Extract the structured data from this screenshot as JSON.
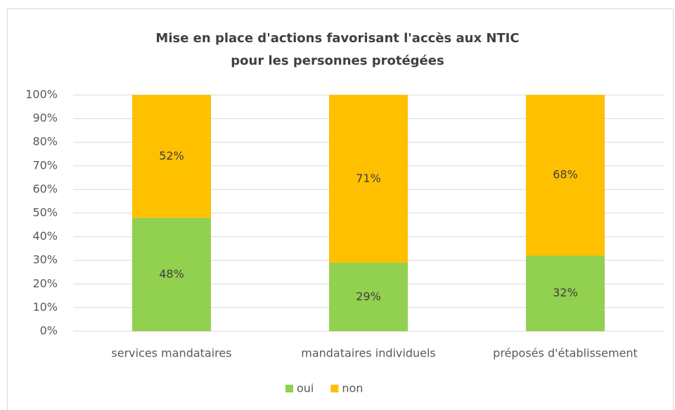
{
  "chart_data": {
    "type": "stacked_bar",
    "title": [
      "Mise en place d'actions favorisant l'accès aux NTIC",
      "pour les personnes protégées"
    ],
    "categories": [
      "services mandataires",
      "mandataires individuels",
      "préposés d'établissement"
    ],
    "series": [
      {
        "name": "oui",
        "color": "#92d050",
        "values": [
          48,
          29,
          32
        ],
        "value_labels": [
          "48%",
          "29%",
          "32%"
        ]
      },
      {
        "name": "non",
        "color": "#ffc000",
        "values": [
          52,
          71,
          68
        ],
        "value_labels": [
          "52%",
          "71%",
          "68%"
        ]
      }
    ],
    "ylim": [
      0,
      100
    ],
    "yticks": [
      {
        "value": 0,
        "label": "0%"
      },
      {
        "value": 10,
        "label": "10%"
      },
      {
        "value": 20,
        "label": "20%"
      },
      {
        "value": 30,
        "label": "30%"
      },
      {
        "value": 40,
        "label": "40%"
      },
      {
        "value": 50,
        "label": "50%"
      },
      {
        "value": 60,
        "label": "60%"
      },
      {
        "value": 70,
        "label": "70%"
      },
      {
        "value": 80,
        "label": "80%"
      },
      {
        "value": 90,
        "label": "90%"
      },
      {
        "value": 100,
        "label": "100%"
      }
    ],
    "grid": true,
    "legend": "bottom"
  }
}
